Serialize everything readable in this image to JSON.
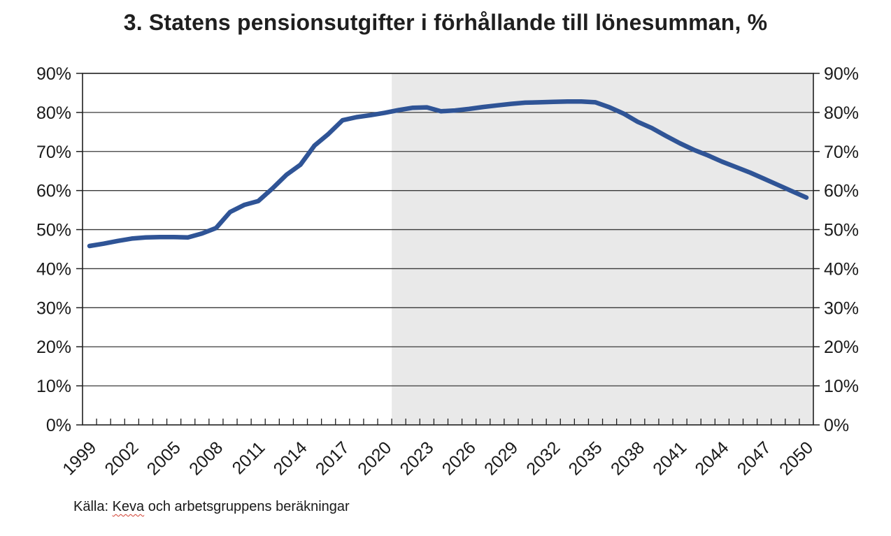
{
  "title": "3. Statens pensionsutgifter i förhållande till lönesumman, %",
  "source": {
    "prefix": "Källa: ",
    "spellchecked_word": "Keva",
    "suffix": " och arbetsgruppens beräkningar",
    "spellcheck_underline_color": "#d23f31"
  },
  "chart_data": {
    "type": "line",
    "title": "3. Statens pensionsutgifter i förhållande till lönesumman, %",
    "xlabel": "",
    "ylabel": "",
    "x": [
      1999,
      2000,
      2001,
      2002,
      2003,
      2004,
      2005,
      2006,
      2007,
      2008,
      2009,
      2010,
      2011,
      2012,
      2013,
      2014,
      2015,
      2016,
      2017,
      2018,
      2019,
      2020,
      2021,
      2022,
      2023,
      2024,
      2025,
      2026,
      2027,
      2028,
      2029,
      2030,
      2031,
      2032,
      2033,
      2034,
      2035,
      2036,
      2037,
      2038,
      2039,
      2040,
      2041,
      2042,
      2043,
      2044,
      2045,
      2046,
      2047,
      2048,
      2049,
      2050
    ],
    "series": [
      {
        "name": "Statens pensionsutgifter i förhållande till lönesumman",
        "values": [
          45.8,
          46.4,
          47.1,
          47.7,
          48.0,
          48.1,
          48.1,
          48.0,
          49.0,
          50.4,
          54.5,
          56.3,
          57.3,
          60.5,
          64.0,
          66.6,
          71.5,
          74.5,
          78.0,
          78.8,
          79.3,
          79.9,
          80.6,
          81.2,
          81.3,
          80.3,
          80.5,
          80.9,
          81.4,
          81.8,
          82.2,
          82.5,
          82.6,
          82.7,
          82.8,
          82.8,
          82.6,
          81.3,
          79.7,
          77.6,
          76.0,
          74.0,
          72.1,
          70.4,
          69.0,
          67.4,
          66.0,
          64.6,
          63.0,
          61.4,
          59.8,
          58.2
        ]
      }
    ],
    "ylim": [
      0,
      90
    ],
    "ytick_step": 10,
    "ytick_suffix": "%",
    "xtick_labels": [
      "1999",
      "2002",
      "2005",
      "2008",
      "2011",
      "2014",
      "2017",
      "2020",
      "2023",
      "2026",
      "2029",
      "2032",
      "2035",
      "2038",
      "2041",
      "2044",
      "2047",
      "2050"
    ],
    "xtick_interval": 3,
    "grid": "horizontal",
    "legend_position": "none",
    "dual_y_axis": true,
    "forecast_start_year": 2021,
    "colors": {
      "line": "#2F5496",
      "forecast_background": "#E9E9E9",
      "gridline": "#3a3a3a",
      "frame": "#1f1f1f",
      "text": "#1a1a1a"
    }
  }
}
